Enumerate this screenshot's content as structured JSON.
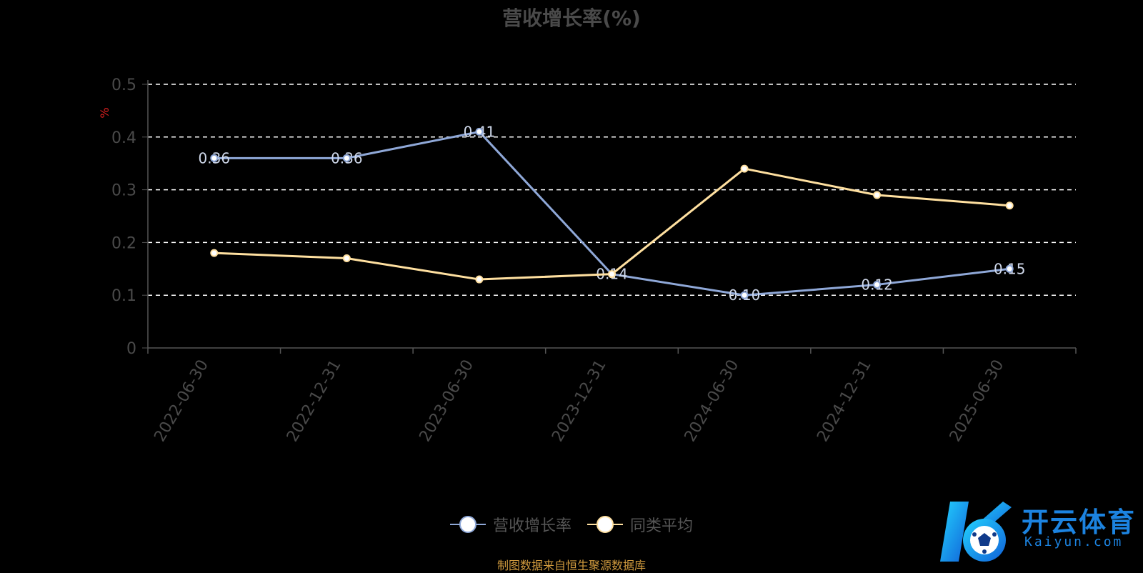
{
  "title": "营收增长率(%)",
  "footer": "制图数据来自恒生聚源数据库",
  "watermark": {
    "text": "开云体育",
    "sub": "Kaiyun.com"
  },
  "colors": {
    "background": "#000000",
    "series1": "#8fa8d8",
    "series2": "#ffe0a0",
    "grid": "#ffffff",
    "axis": "#555555",
    "tick_label": "#4a4a4a",
    "unit": "#e02020"
  },
  "chart_data": {
    "type": "line",
    "title": "营收增长率(%)",
    "xlabel": "",
    "ylabel": "%",
    "categories": [
      "2022-06-30",
      "2022-12-31",
      "2023-06-30",
      "2023-12-31",
      "2024-06-30",
      "2024-12-31",
      "2025-06-30"
    ],
    "yticks": [
      "0",
      "0.1",
      "0.2",
      "0.3",
      "0.4",
      "0.5"
    ],
    "ylim": [
      0,
      0.5
    ],
    "grid": true,
    "legend_position": "bottom",
    "series": [
      {
        "name": "营收增长率",
        "values": [
          0.36,
          0.36,
          0.41,
          0.14,
          0.1,
          0.12,
          0.15
        ],
        "labels": [
          "0.36",
          "0.36",
          "0.41",
          "0.14",
          "0.10",
          "0.12",
          "0.15"
        ]
      },
      {
        "name": "同类平均",
        "values": [
          0.18,
          0.17,
          0.13,
          0.14,
          0.34,
          0.29,
          0.27
        ]
      }
    ]
  }
}
